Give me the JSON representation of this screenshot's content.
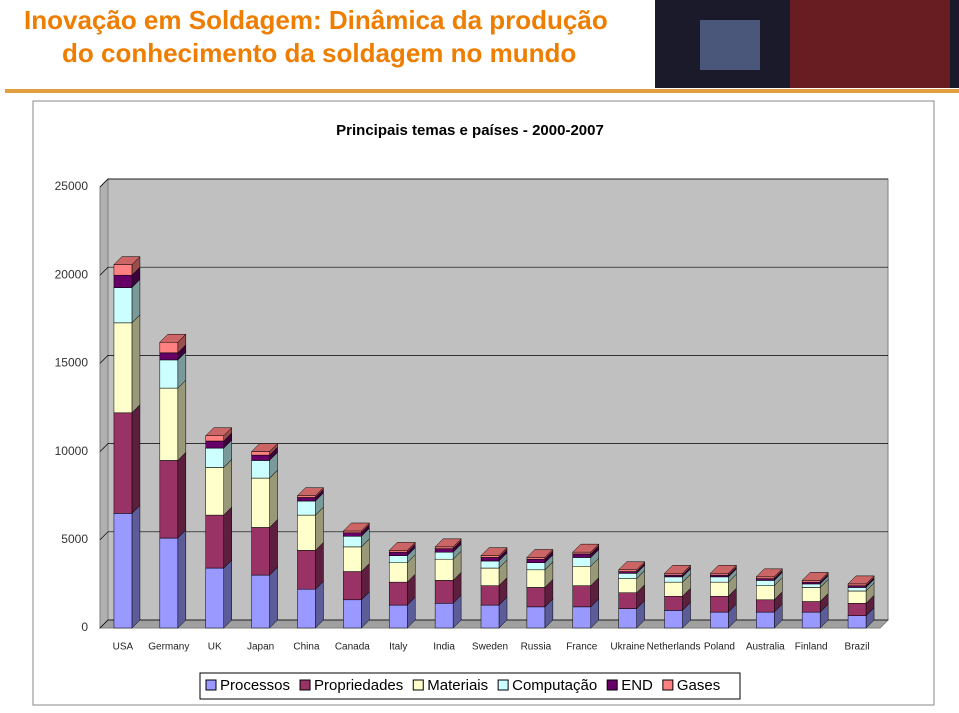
{
  "slide": {
    "title_lines": [
      "Inovação em Soldagem: Dinâmica da produção",
      "do conhecimento da soldagem no mundo"
    ]
  },
  "chart_data": {
    "type": "bar3d_stacked",
    "title": "Principais temas e países - 2000-2007",
    "categories": [
      "USA",
      "Germany",
      "UK",
      "Japan",
      "China",
      "Canada",
      "Italy",
      "India",
      "Sweden",
      "Russia",
      "France",
      "Ukraine",
      "Netherlands",
      "Poland",
      "Australia",
      "Finland",
      "Brazil"
    ],
    "series": [
      {
        "name": "Processos",
        "color": "#9999ff",
        "values": [
          6500,
          5100,
          3400,
          3000,
          2200,
          1600,
          1300,
          1400,
          1300,
          1200,
          1200,
          1100,
          1000,
          900,
          900,
          900,
          700
        ]
      },
      {
        "name": "Propriedades",
        "color": "#993366",
        "values": [
          5700,
          4400,
          3000,
          2700,
          2200,
          1600,
          1300,
          1300,
          1100,
          1100,
          1200,
          900,
          800,
          900,
          700,
          600,
          700
        ]
      },
      {
        "name": "Materiais",
        "color": "#ffffcc",
        "values": [
          5100,
          4100,
          2700,
          2800,
          2000,
          1400,
          1100,
          1200,
          1000,
          1000,
          1100,
          800,
          800,
          800,
          800,
          800,
          700
        ]
      },
      {
        "name": "Computação",
        "color": "#ccffff",
        "values": [
          2000,
          1600,
          1100,
          1000,
          800,
          600,
          400,
          400,
          400,
          400,
          500,
          300,
          300,
          300,
          300,
          200,
          200
        ]
      },
      {
        "name": "END",
        "color": "#660066",
        "values": [
          700,
          400,
          400,
          300,
          200,
          200,
          200,
          200,
          200,
          200,
          200,
          100,
          100,
          100,
          100,
          100,
          100
        ]
      },
      {
        "name": "Gases",
        "color": "#ff8080",
        "values": [
          600,
          600,
          300,
          200,
          100,
          100,
          100,
          100,
          100,
          100,
          100,
          100,
          100,
          100,
          100,
          100,
          100
        ]
      }
    ],
    "ylim": [
      0,
      25000
    ],
    "yticks": [
      0,
      5000,
      10000,
      15000,
      20000,
      25000
    ],
    "grid": true
  }
}
